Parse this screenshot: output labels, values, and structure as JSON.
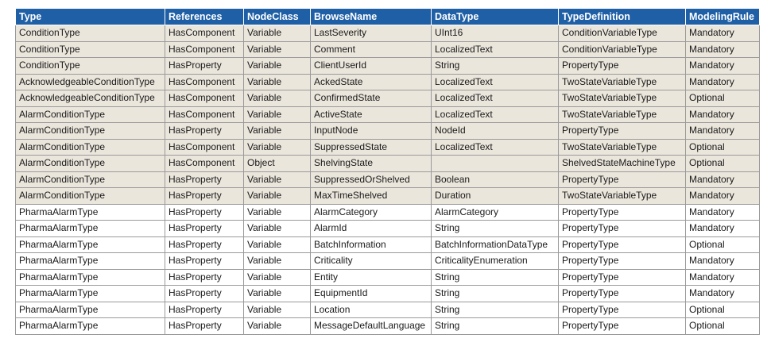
{
  "table": {
    "headers": [
      "Type",
      "References",
      "NodeClass",
      "BrowseName",
      "DataType",
      "TypeDefinition",
      "ModelingRule"
    ],
    "rows": [
      {
        "shaded": true,
        "cells": [
          "ConditionType",
          "HasComponent",
          "Variable",
          "LastSeverity",
          "UInt16",
          "ConditionVariableType",
          "Mandatory"
        ]
      },
      {
        "shaded": true,
        "cells": [
          "ConditionType",
          "HasComponent",
          "Variable",
          "Comment",
          "LocalizedText",
          "ConditionVariableType",
          "Mandatory"
        ]
      },
      {
        "shaded": true,
        "cells": [
          "ConditionType",
          "HasProperty",
          "Variable",
          "ClientUserId",
          "String",
          "PropertyType",
          "Mandatory"
        ]
      },
      {
        "shaded": true,
        "cells": [
          "AcknowledgeableConditionType",
          "HasComponent",
          "Variable",
          "AckedState",
          "LocalizedText",
          "TwoStateVariableType",
          "Mandatory"
        ]
      },
      {
        "shaded": true,
        "cells": [
          "AcknowledgeableConditionType",
          "HasComponent",
          "Variable",
          "ConfirmedState",
          "LocalizedText",
          "TwoStateVariableType",
          "Optional"
        ]
      },
      {
        "shaded": true,
        "cells": [
          "AlarmConditionType",
          "HasComponent",
          "Variable",
          "ActiveState",
          "LocalizedText",
          "TwoStateVariableType",
          "Mandatory"
        ]
      },
      {
        "shaded": true,
        "cells": [
          "AlarmConditionType",
          "HasProperty",
          "Variable",
          "InputNode",
          "NodeId",
          "PropertyType",
          "Mandatory"
        ]
      },
      {
        "shaded": true,
        "cells": [
          "AlarmConditionType",
          "HasComponent",
          "Variable",
          "SuppressedState",
          "LocalizedText",
          "TwoStateVariableType",
          "Optional"
        ]
      },
      {
        "shaded": true,
        "cells": [
          "AlarmConditionType",
          "HasComponent",
          "Object",
          "ShelvingState",
          "",
          "ShelvedStateMachineType",
          "Optional"
        ]
      },
      {
        "shaded": true,
        "cells": [
          "AlarmConditionType",
          "HasProperty",
          "Variable",
          "SuppressedOrShelved",
          "Boolean",
          "PropertyType",
          "Mandatory"
        ]
      },
      {
        "shaded": true,
        "cells": [
          "AlarmConditionType",
          "HasProperty",
          "Variable",
          "MaxTimeShelved",
          "Duration",
          "TwoStateVariableType",
          "Mandatory"
        ]
      },
      {
        "shaded": false,
        "cells": [
          "PharmaAlarmType",
          "HasProperty",
          "Variable",
          "AlarmCategory",
          "AlarmCategory",
          "PropertyType",
          "Mandatory"
        ]
      },
      {
        "shaded": false,
        "cells": [
          "PharmaAlarmType",
          "HasProperty",
          "Variable",
          "AlarmId",
          "String",
          "PropertyType",
          "Mandatory"
        ]
      },
      {
        "shaded": false,
        "cells": [
          "PharmaAlarmType",
          "HasProperty",
          "Variable",
          "BatchInformation",
          "BatchInformationDataType",
          "PropertyType",
          "Optional"
        ]
      },
      {
        "shaded": false,
        "cells": [
          "PharmaAlarmType",
          "HasProperty",
          "Variable",
          "Criticality",
          "CriticalityEnumeration",
          "PropertyType",
          "Mandatory"
        ]
      },
      {
        "shaded": false,
        "cells": [
          "PharmaAlarmType",
          "HasProperty",
          "Variable",
          "Entity",
          "String",
          "PropertyType",
          "Mandatory"
        ]
      },
      {
        "shaded": false,
        "cells": [
          "PharmaAlarmType",
          "HasProperty",
          "Variable",
          "EquipmentId",
          "String",
          "PropertyType",
          "Mandatory"
        ]
      },
      {
        "shaded": false,
        "cells": [
          "PharmaAlarmType",
          "HasProperty",
          "Variable",
          "Location",
          "String",
          "PropertyType",
          "Optional"
        ]
      },
      {
        "shaded": false,
        "cells": [
          "PharmaAlarmType",
          "HasProperty",
          "Variable",
          "MessageDefaultLanguage",
          "String",
          "PropertyType",
          "Optional"
        ]
      }
    ]
  }
}
